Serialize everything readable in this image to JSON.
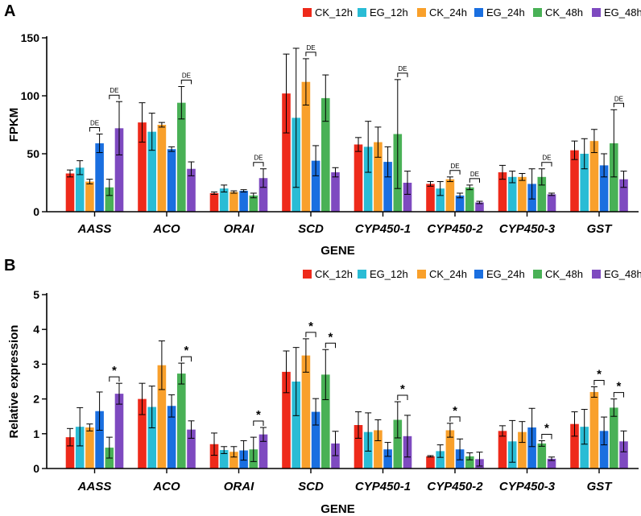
{
  "chart_data": [
    {
      "type": "bar",
      "panel": "A",
      "categories": [
        "AASS",
        "ACO",
        "ORAI",
        "SCD",
        "CYP450-1",
        "CYP450-2",
        "CYP450-3",
        "GST"
      ],
      "xlabel": "GENE",
      "ylabel": "FPKM",
      "ylim": [
        0,
        150
      ],
      "yticks": [
        0,
        50,
        100,
        150
      ],
      "grid": false,
      "legend_position": "top-right",
      "series": [
        {
          "name": "CK_12h",
          "color": "#EE2A1B",
          "values": [
            33,
            77,
            16,
            102,
            58,
            24,
            34,
            53
          ],
          "errors": [
            3,
            17,
            1,
            34,
            6,
            2,
            6,
            8
          ]
        },
        {
          "name": "EG_12h",
          "color": "#2ABCD5",
          "values": [
            38,
            69,
            20,
            81,
            56,
            20,
            30,
            50
          ],
          "errors": [
            6,
            16,
            3,
            60,
            22,
            6,
            5,
            13
          ]
        },
        {
          "name": "CK_24h",
          "color": "#F9A02B",
          "values": [
            26,
            75,
            17,
            112,
            60,
            28,
            30,
            61
          ],
          "errors": [
            2,
            2,
            1,
            20,
            13,
            2,
            3,
            10
          ]
        },
        {
          "name": "EG_24h",
          "color": "#1A6FE0",
          "values": [
            59,
            54,
            18,
            44,
            43,
            14,
            24,
            40
          ],
          "errors": [
            8,
            2,
            1,
            13,
            13,
            2,
            13,
            10
          ]
        },
        {
          "name": "CK_48h",
          "color": "#49B156",
          "values": [
            21,
            94,
            14,
            98,
            67,
            21,
            30,
            59
          ],
          "errors": [
            7,
            14,
            2,
            20,
            47,
            2,
            7,
            29
          ]
        },
        {
          "name": "EG_48h",
          "color": "#7E4AC0",
          "values": [
            72,
            37,
            29,
            34,
            25,
            8,
            15,
            28
          ],
          "errors": [
            23,
            6,
            8,
            4,
            10,
            1,
            1,
            7
          ]
        }
      ],
      "annotations": [
        {
          "category": "AASS",
          "pair": [
            3,
            4
          ],
          "label": "DE"
        },
        {
          "category": "AASS",
          "pair": [
            5,
            6
          ],
          "label": "DE"
        },
        {
          "category": "ACO",
          "pair": [
            5,
            6
          ],
          "label": "DE"
        },
        {
          "category": "ORAI",
          "pair": [
            5,
            6
          ],
          "label": "DE"
        },
        {
          "category": "SCD",
          "pair": [
            3,
            4
          ],
          "label": "DE"
        },
        {
          "category": "CYP450-1",
          "pair": [
            5,
            6
          ],
          "label": "DE"
        },
        {
          "category": "CYP450-2",
          "pair": [
            3,
            4
          ],
          "label": "DE"
        },
        {
          "category": "CYP450-2",
          "pair": [
            5,
            6
          ],
          "label": "DE"
        },
        {
          "category": "CYP450-3",
          "pair": [
            5,
            6
          ],
          "label": "DE"
        },
        {
          "category": "GST",
          "pair": [
            5,
            6
          ],
          "label": "DE"
        }
      ]
    },
    {
      "type": "bar",
      "panel": "B",
      "categories": [
        "AASS",
        "ACO",
        "ORAI",
        "SCD",
        "CYP450-1",
        "CYP450-2",
        "CYP450-3",
        "GST"
      ],
      "xlabel": "GENE",
      "ylabel": "Relative expression",
      "ylim": [
        0,
        5
      ],
      "yticks": [
        0,
        1,
        2,
        3,
        4,
        5
      ],
      "grid": false,
      "legend_position": "top-right",
      "series": [
        {
          "name": "CK_12h",
          "color": "#EE2A1B",
          "values": [
            0.9,
            2.0,
            0.7,
            2.78,
            1.25,
            0.35,
            1.08,
            1.28
          ],
          "errors": [
            0.25,
            0.45,
            0.32,
            0.6,
            0.38,
            0.02,
            0.15,
            0.35
          ]
        },
        {
          "name": "EG_12h",
          "color": "#2ABCD5",
          "values": [
            1.2,
            1.77,
            0.53,
            2.5,
            1.05,
            0.5,
            0.78,
            1.2
          ],
          "errors": [
            0.55,
            0.6,
            0.1,
            0.98,
            0.55,
            0.18,
            0.6,
            0.5
          ]
        },
        {
          "name": "CK_24h",
          "color": "#F9A02B",
          "values": [
            1.18,
            2.97,
            0.48,
            3.25,
            1.1,
            1.1,
            1.05,
            2.2
          ],
          "errors": [
            0.1,
            0.7,
            0.15,
            0.48,
            0.3,
            0.2,
            0.3,
            0.15
          ]
        },
        {
          "name": "EG_24h",
          "color": "#1A6FE0",
          "values": [
            1.65,
            1.8,
            0.52,
            1.63,
            0.55,
            0.55,
            1.18,
            1.08
          ],
          "errors": [
            0.55,
            0.32,
            0.28,
            0.38,
            0.2,
            0.3,
            0.55,
            0.4
          ]
        },
        {
          "name": "CK_48h",
          "color": "#49B156",
          "values": [
            0.6,
            2.73,
            0.55,
            2.7,
            1.4,
            0.35,
            0.72,
            1.75
          ],
          "errors": [
            0.3,
            0.3,
            0.35,
            0.72,
            0.52,
            0.1,
            0.08,
            0.25
          ]
        },
        {
          "name": "EG_48h",
          "color": "#7E4AC0",
          "values": [
            2.15,
            1.12,
            0.98,
            0.72,
            0.93,
            0.27,
            0.28,
            0.78
          ],
          "errors": [
            0.3,
            0.25,
            0.2,
            0.35,
            0.6,
            0.2,
            0.05,
            0.3
          ]
        }
      ],
      "annotations": [
        {
          "category": "AASS",
          "pair": [
            5,
            6
          ],
          "label": "*"
        },
        {
          "category": "ACO",
          "pair": [
            5,
            6
          ],
          "label": "*"
        },
        {
          "category": "ORAI",
          "pair": [
            5,
            6
          ],
          "label": "*"
        },
        {
          "category": "SCD",
          "pair": [
            3,
            4
          ],
          "label": "*"
        },
        {
          "category": "SCD",
          "pair": [
            5,
            6
          ],
          "label": "*"
        },
        {
          "category": "CYP450-1",
          "pair": [
            5,
            6
          ],
          "label": "*"
        },
        {
          "category": "CYP450-2",
          "pair": [
            3,
            4
          ],
          "label": "*"
        },
        {
          "category": "CYP450-3",
          "pair": [
            5,
            6
          ],
          "label": "*"
        },
        {
          "category": "GST",
          "pair": [
            3,
            4
          ],
          "label": "*"
        },
        {
          "category": "GST",
          "pair": [
            5,
            6
          ],
          "label": "*"
        }
      ]
    }
  ]
}
